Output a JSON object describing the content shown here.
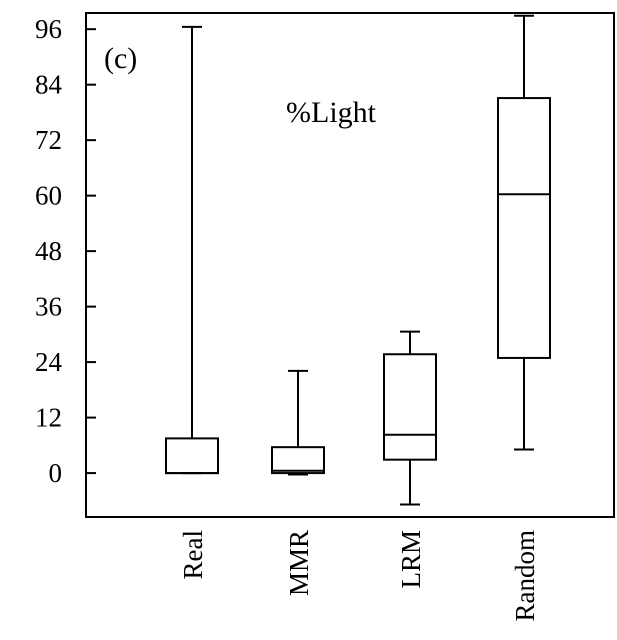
{
  "chart_data": {
    "type": "box",
    "panel_label": "(c)",
    "title": "%Light",
    "xlabel": "",
    "ylabel": "",
    "ylim": [
      -9.5,
      99.5
    ],
    "yticks": [
      0,
      12,
      24,
      36,
      48,
      60,
      72,
      84,
      96
    ],
    "ytick_labels": [
      "0",
      "12",
      "24",
      "36",
      "48",
      "60",
      "72",
      "84",
      "96"
    ],
    "categories": [
      "Real",
      "MMR",
      "LRM",
      "Random"
    ],
    "boxes": [
      {
        "category": "Real",
        "whisker_low": 0,
        "q1": 0,
        "median": 0,
        "q3": 7.5,
        "whisker_high": 96.5
      },
      {
        "category": "MMR",
        "whisker_low": -0.3,
        "q1": 0,
        "median": 0.5,
        "q3": 5.6,
        "whisker_high": 22.1
      },
      {
        "category": "LRM",
        "whisker_low": -6.8,
        "q1": 2.9,
        "median": 8.3,
        "q3": 25.7,
        "whisker_high": 30.6
      },
      {
        "category": "Random",
        "whisker_low": 5.1,
        "q1": 24.9,
        "median": 60.3,
        "q3": 81.1,
        "whisker_high": 98.9
      }
    ],
    "grid": false,
    "legend": "none"
  }
}
